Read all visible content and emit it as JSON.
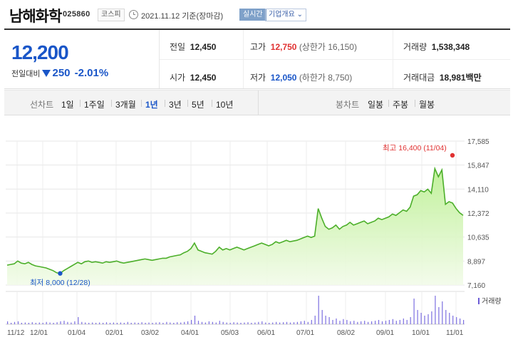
{
  "header": {
    "name": "남해화학",
    "code": "025860",
    "market": "코스피",
    "date": "2021.11.12 기준(장마감)",
    "realtime": "실시간",
    "corp_info": "기업개요 ⌄"
  },
  "quote": {
    "price": "12,200",
    "change_label": "전일대비",
    "change": "250",
    "change_pct": "-2.01%",
    "prev_label": "전일",
    "prev": "12,450",
    "open_label": "시가",
    "open": "12,450",
    "high_label": "고가",
    "high": "12,750",
    "upper_limit": "(상한가 16,150)",
    "low_label": "저가",
    "low": "12,050",
    "lower_limit": "(하한가 8,750)",
    "volume_label": "거래량",
    "volume": "1,538,348",
    "amount_label": "거래대금",
    "amount": "18,981",
    "amount_unit": "백만"
  },
  "tabs": {
    "line_label": "선차트",
    "line_items": [
      "1일",
      "1주일",
      "3개월",
      "1년",
      "3년",
      "5년",
      "10년"
    ],
    "active_line": "1년",
    "candle_label": "봉차트",
    "candle_items": [
      "일봉",
      "주봉",
      "월봉"
    ]
  },
  "colors": {
    "up": "#e03131",
    "down": "#1a56c8",
    "line": "#4caf2a",
    "fill": "#c6f0a4"
  },
  "chart_data": {
    "type": "area",
    "yticks": [
      "17,585",
      "15,847",
      "14,110",
      "12,372",
      "10,635",
      "8,897",
      "7,160"
    ],
    "ylim": [
      7160,
      17585
    ],
    "x_labels": [
      "11/12",
      "12/01",
      "01/04",
      "02/01",
      "03/02",
      "04/01",
      "05/03",
      "06/01",
      "07/01",
      "08/02",
      "09/01",
      "10/01",
      "11/01"
    ],
    "max_label": "최고 16,400 (11/04)",
    "min_label": "최저 8,000 (12/28)",
    "volume_legend": "거래량",
    "values": [
      8600,
      8650,
      8700,
      8900,
      8750,
      8700,
      8800,
      8650,
      8550,
      8500,
      8450,
      8400,
      8300,
      8200,
      8050,
      8000,
      8200,
      8350,
      8500,
      8650,
      8800,
      8700,
      8850,
      8900,
      8800,
      8850,
      8800,
      8750,
      8850,
      8800,
      8850,
      8900,
      8800,
      8750,
      8800,
      8850,
      8900,
      8950,
      9000,
      9050,
      9000,
      8950,
      9000,
      9050,
      9100,
      9100,
      9200,
      9250,
      9300,
      9350,
      9500,
      9600,
      9800,
      10200,
      9700,
      9600,
      9500,
      9450,
      9400,
      9600,
      9900,
      9700,
      9800,
      9700,
      9800,
      9900,
      9800,
      9700,
      9800,
      9900,
      10000,
      10100,
      10200,
      10100,
      10000,
      10100,
      10300,
      10200,
      10300,
      10400,
      10300,
      10350,
      10400,
      10500,
      10600,
      10700,
      10600,
      10700,
      12700,
      12000,
      11400,
      11200,
      11300,
      11500,
      11200,
      11400,
      11500,
      11700,
      11500,
      11600,
      11700,
      11800,
      11600,
      11700,
      11800,
      12000,
      11900,
      12000,
      12100,
      12300,
      12200,
      12400,
      12600,
      12500,
      12800,
      13600,
      13700,
      14000,
      13900,
      14100,
      13800,
      15600,
      15000,
      15500,
      13000,
      13200,
      13100,
      12700,
      12400,
      12200
    ],
    "volumes": [
      0.1,
      0.05,
      0.08,
      0.1,
      0.05,
      0.06,
      0.05,
      0.07,
      0.05,
      0.06,
      0.05,
      0.08,
      0.06,
      0.05,
      0.07,
      0.1,
      0.12,
      0.08,
      0.06,
      0.1,
      0.25,
      0.08,
      0.06,
      0.05,
      0.06,
      0.05,
      0.06,
      0.05,
      0.07,
      0.05,
      0.06,
      0.05,
      0.06,
      0.05,
      0.08,
      0.05,
      0.06,
      0.05,
      0.07,
      0.05,
      0.06,
      0.05,
      0.06,
      0.07,
      0.05,
      0.08,
      0.06,
      0.05,
      0.07,
      0.06,
      0.08,
      0.1,
      0.15,
      0.3,
      0.12,
      0.08,
      0.06,
      0.1,
      0.08,
      0.06,
      0.12,
      0.08,
      0.06,
      0.05,
      0.07,
      0.06,
      0.05,
      0.06,
      0.07,
      0.05,
      0.06,
      0.08,
      0.1,
      0.06,
      0.05,
      0.06,
      0.08,
      0.06,
      0.07,
      0.08,
      0.06,
      0.07,
      0.08,
      0.1,
      0.12,
      0.08,
      0.15,
      0.3,
      1.0,
      0.5,
      0.3,
      0.25,
      0.15,
      0.2,
      0.12,
      0.18,
      0.15,
      0.1,
      0.12,
      0.08,
      0.1,
      0.12,
      0.08,
      0.1,
      0.12,
      0.15,
      0.1,
      0.12,
      0.15,
      0.18,
      0.12,
      0.15,
      0.2,
      0.15,
      0.25,
      0.9,
      0.5,
      0.4,
      0.3,
      0.35,
      0.45,
      1.0,
      0.6,
      0.8,
      0.5,
      0.4,
      0.3,
      0.25,
      0.2,
      0.15
    ]
  }
}
